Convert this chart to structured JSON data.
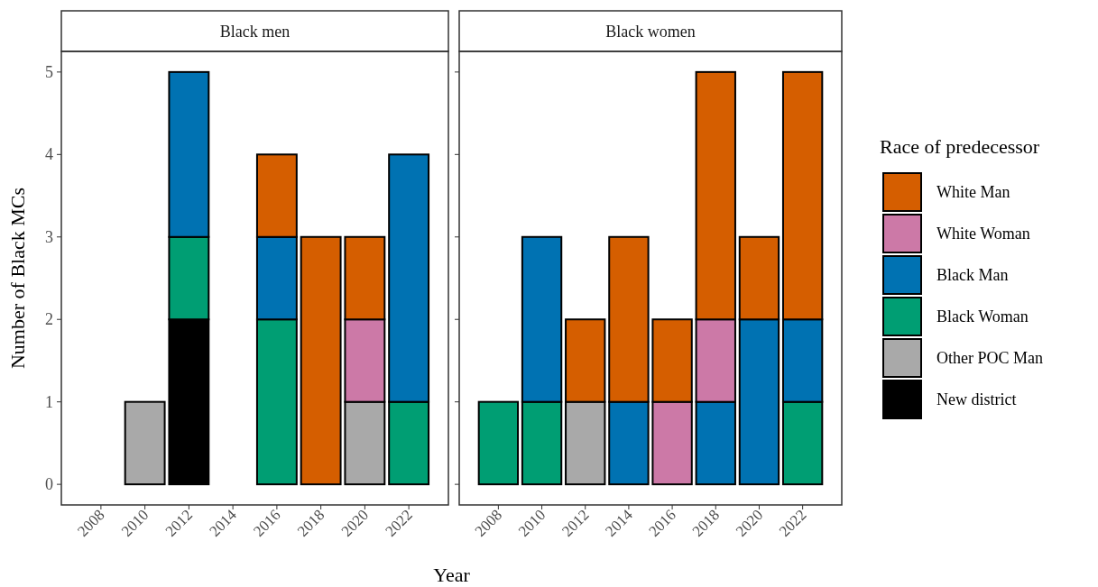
{
  "chart_data": [
    {
      "type": "bar",
      "title": "Black men",
      "stacked": true,
      "ylabel": "Number of Black MCs",
      "xlabel": "Year",
      "x": [
        2010,
        2012,
        2016,
        2018,
        2020,
        2022
      ],
      "xlim": [
        2006.2,
        2023.8
      ],
      "xticks": [
        2008,
        2010,
        2012,
        2014,
        2016,
        2018,
        2020,
        2022
      ],
      "ylim": [
        -0.25,
        5.25
      ],
      "yticks": [
        0,
        1,
        2,
        3,
        4,
        5
      ],
      "series": [
        {
          "color": "#000000",
          "values": [
            null,
            2,
            null,
            null,
            null,
            null
          ]
        },
        {
          "color": "#a9a9a9",
          "values": [
            1,
            null,
            null,
            null,
            1,
            null
          ]
        },
        {
          "color": "#009e73",
          "values": [
            null,
            1,
            2,
            null,
            null,
            1
          ]
        },
        {
          "color": "#0072b2",
          "values": [
            null,
            2,
            1,
            null,
            null,
            3
          ]
        },
        {
          "color": "#cc79a7",
          "values": [
            null,
            null,
            null,
            null,
            1,
            null
          ]
        },
        {
          "color": "#d55e00",
          "values": [
            null,
            null,
            1,
            3,
            1,
            null
          ]
        }
      ]
    },
    {
      "type": "bar",
      "title": "Black women",
      "stacked": true,
      "tick_labels": "x",
      "legend": "right",
      "legend_title": "Race of predecessor",
      "x": [
        2008,
        2010,
        2012,
        2014,
        2016,
        2018,
        2020,
        2022
      ],
      "xlim": [
        2006.2,
        2023.8
      ],
      "xticks": [
        2008,
        2010,
        2012,
        2014,
        2016,
        2018,
        2020,
        2022
      ],
      "ylim": [
        -0.25,
        5.25
      ],
      "yticks": [
        0,
        1,
        2,
        3,
        4,
        5
      ],
      "series": [
        {
          "name": "New district",
          "color": "#000000",
          "values": [
            null,
            null,
            null,
            null,
            null,
            null,
            null,
            null
          ]
        },
        {
          "name": "Other POC Man",
          "color": "#a9a9a9",
          "values": [
            null,
            null,
            1,
            null,
            null,
            null,
            null,
            null
          ]
        },
        {
          "name": "Black Woman",
          "color": "#009e73",
          "values": [
            1,
            1,
            null,
            null,
            null,
            null,
            null,
            1
          ]
        },
        {
          "name": "Black Man",
          "color": "#0072b2",
          "values": [
            null,
            2,
            null,
            1,
            null,
            1,
            2,
            1
          ]
        },
        {
          "name": "White Woman",
          "color": "#cc79a7",
          "values": [
            null,
            null,
            null,
            null,
            1,
            1,
            null,
            null
          ]
        },
        {
          "name": "White Man",
          "color": "#d55e00",
          "values": [
            null,
            null,
            1,
            2,
            1,
            3,
            1,
            3
          ]
        }
      ]
    }
  ]
}
